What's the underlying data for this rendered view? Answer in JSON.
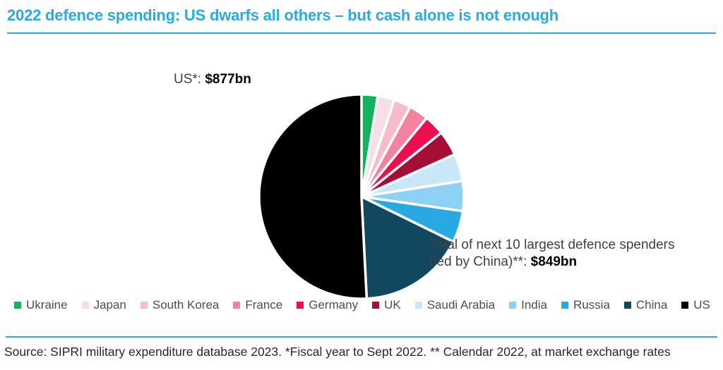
{
  "header": {
    "title": "2022 defence spending: US dwarfs all others – but cash alone is not enough"
  },
  "colors": {
    "accent_blue": "#29ABE2",
    "label_gray": "#414042",
    "legend_gray": "#4D4D4F"
  },
  "labels": {
    "us": {
      "prefix": "US*: ",
      "value": "$877bn"
    },
    "next10": {
      "line1": "Total of next 10 largest defence spenders",
      "line2_prefix": "(led by China)**: ",
      "value": "$849bn"
    }
  },
  "footer": {
    "source": "Source: SIPRI military expenditure database 2023. *Fiscal year to Sept 2022. ** Calendar 2022, at market exchange rates"
  },
  "chart_data": {
    "type": "pie",
    "title": "2022 defence spending: US dwarfs all others – but cash alone is not enough",
    "unit": "US$ billion",
    "start_angle_deg": 0,
    "direction": "clockwise",
    "gap_stroke_color": "#ffffff",
    "annotated_totals": {
      "us": 877,
      "next_10_total": 849
    },
    "slices": [
      {
        "label": "Ukraine",
        "value": 44.0,
        "color": "#15B25D"
      },
      {
        "label": "Japan",
        "value": 46.0,
        "color": "#F7DFE7"
      },
      {
        "label": "South Korea",
        "value": 46.4,
        "color": "#F7BCCB"
      },
      {
        "label": "France",
        "value": 53.6,
        "color": "#F5829F"
      },
      {
        "label": "Germany",
        "value": 55.8,
        "color": "#EC0E4E"
      },
      {
        "label": "UK",
        "value": 68.5,
        "color": "#A50F35"
      },
      {
        "label": "Saudi Arabia",
        "value": 75.0,
        "color": "#C8E7F9"
      },
      {
        "label": "India",
        "value": 81.4,
        "color": "#8ED1F4"
      },
      {
        "label": "Russia",
        "value": 86.4,
        "color": "#29A9E3"
      },
      {
        "label": "China",
        "value": 292.0,
        "color": "#12485F"
      },
      {
        "label": "US",
        "value": 877.0,
        "color": "#000000"
      }
    ],
    "legend_position": "bottom"
  }
}
